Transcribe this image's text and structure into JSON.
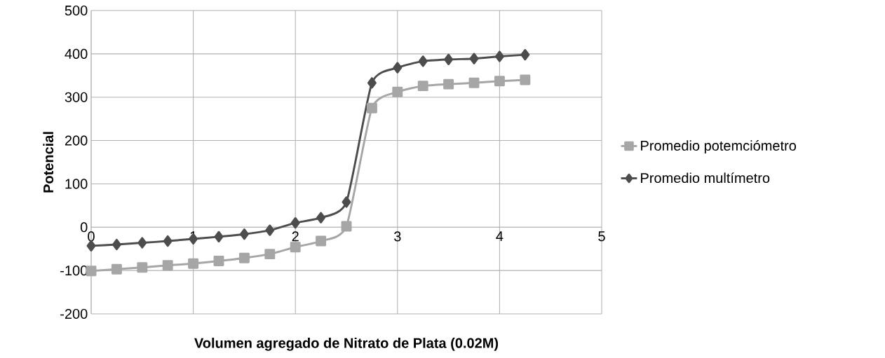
{
  "chart_data": {
    "type": "line",
    "xlabel": "Volumen agregado de Nitrato de Plata  (0.02M)",
    "ylabel": "Potencial",
    "x": [
      0,
      0.25,
      0.5,
      0.75,
      1,
      1.25,
      1.5,
      1.75,
      2,
      2.25,
      2.5,
      2.75,
      3,
      3.25,
      3.5,
      3.75,
      4,
      4.25
    ],
    "series": [
      {
        "name": "Promedio potemciómetro",
        "color": "#a6a6a6",
        "marker": "square",
        "values": [
          -101,
          -97,
          -93,
          -88,
          -84,
          -78,
          -71,
          -62,
          -46,
          -32,
          2,
          275,
          312,
          326,
          330,
          333,
          337,
          340
        ]
      },
      {
        "name": "Promedio multímetro",
        "color": "#4d4d4d",
        "marker": "diamond",
        "values": [
          -43,
          -40,
          -36,
          -32,
          -27,
          -22,
          -16,
          -7,
          10,
          22,
          58,
          333,
          368,
          383,
          387,
          389,
          394,
          398
        ]
      }
    ],
    "xlim": [
      0,
      5
    ],
    "xticks": [
      0,
      1,
      2,
      3,
      4,
      5
    ],
    "ylim": [
      -200,
      500
    ],
    "yticks": [
      -200,
      -100,
      0,
      100,
      200,
      300,
      400,
      500
    ],
    "grid": true,
    "legend": "right"
  }
}
